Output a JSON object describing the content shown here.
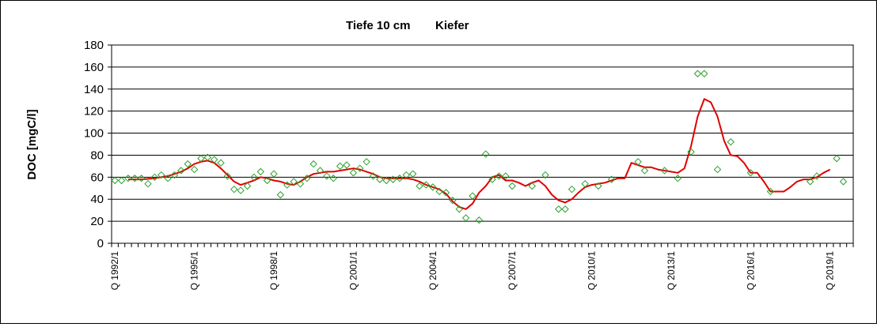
{
  "chart_data": {
    "type": "scatter",
    "title_left": "Tiefe  10 cm",
    "title_right": "Kiefer",
    "ylabel": "DOC [mgC/l]",
    "xlabel": "",
    "ylim": [
      0,
      180
    ],
    "yticks": [
      0,
      20,
      40,
      60,
      80,
      100,
      120,
      140,
      160,
      180
    ],
    "grid": "horizontal",
    "x_unit": "quarter",
    "x_start": "Q 1992/1",
    "x_end": "Q 2019/4",
    "xtick_labels": [
      "Q 1992/1",
      "Q 1995/1",
      "Q 1998/1",
      "Q 2001/1",
      "Q 2004/1",
      "Q 2007/1",
      "Q 2010/1",
      "Q 2013/1",
      "Q 2016/1",
      "Q 2019/1"
    ],
    "series": [
      {
        "kind": "markers",
        "marker": "diamond",
        "color": "#2ca02c",
        "points": [
          [
            "Q 1992/1",
            57
          ],
          [
            "Q 1992/2",
            57
          ],
          [
            "Q 1992/3",
            59
          ],
          [
            "Q 1992/4",
            59
          ],
          [
            "Q 1993/1",
            59
          ],
          [
            "Q 1993/2",
            54
          ],
          [
            "Q 1993/3",
            60
          ],
          [
            "Q 1993/4",
            62
          ],
          [
            "Q 1994/1",
            59
          ],
          [
            "Q 1994/2",
            62
          ],
          [
            "Q 1994/3",
            66
          ],
          [
            "Q 1994/4",
            72
          ],
          [
            "Q 1995/1",
            67
          ],
          [
            "Q 1995/2",
            77
          ],
          [
            "Q 1995/3",
            78
          ],
          [
            "Q 1995/4",
            76
          ],
          [
            "Q 1996/1",
            73
          ],
          [
            "Q 1996/2",
            61
          ],
          [
            "Q 1996/3",
            49
          ],
          [
            "Q 1996/4",
            48
          ],
          [
            "Q 1997/1",
            52
          ],
          [
            "Q 1997/2",
            60
          ],
          [
            "Q 1997/3",
            65
          ],
          [
            "Q 1997/4",
            57
          ],
          [
            "Q 1998/1",
            63
          ],
          [
            "Q 1998/2",
            44
          ],
          [
            "Q 1998/3",
            53
          ],
          [
            "Q 1998/4",
            56
          ],
          [
            "Q 1999/1",
            54
          ],
          [
            "Q 1999/2",
            59
          ],
          [
            "Q 1999/3",
            72
          ],
          [
            "Q 1999/4",
            66
          ],
          [
            "Q 2000/1",
            61
          ],
          [
            "Q 2000/2",
            59
          ],
          [
            "Q 2000/3",
            70
          ],
          [
            "Q 2000/4",
            71
          ],
          [
            "Q 2001/1",
            64
          ],
          [
            "Q 2001/2",
            68
          ],
          [
            "Q 2001/3",
            74
          ],
          [
            "Q 2001/4",
            61
          ],
          [
            "Q 2002/1",
            58
          ],
          [
            "Q 2002/2",
            57
          ],
          [
            "Q 2002/3",
            58
          ],
          [
            "Q 2002/4",
            59
          ],
          [
            "Q 2003/1",
            62
          ],
          [
            "Q 2003/2",
            63
          ],
          [
            "Q 2003/3",
            52
          ],
          [
            "Q 2003/4",
            53
          ],
          [
            "Q 2004/1",
            51
          ],
          [
            "Q 2004/2",
            47
          ],
          [
            "Q 2004/3",
            46
          ],
          [
            "Q 2004/4",
            39
          ],
          [
            "Q 2005/1",
            31
          ],
          [
            "Q 2005/2",
            23
          ],
          [
            "Q 2005/3",
            43
          ],
          [
            "Q 2005/4",
            21
          ],
          [
            "Q 2006/1",
            81
          ],
          [
            "Q 2006/2",
            58
          ],
          [
            "Q 2006/3",
            61
          ],
          [
            "Q 2006/4",
            61
          ],
          [
            "Q 2007/1",
            52
          ],
          [
            "Q 2007/4",
            52
          ],
          [
            "Q 2008/2",
            62
          ],
          [
            "Q 2008/4",
            31
          ],
          [
            "Q 2009/1",
            31
          ],
          [
            "Q 2009/2",
            49
          ],
          [
            "Q 2009/4",
            54
          ],
          [
            "Q 2010/2",
            52
          ],
          [
            "Q 2010/4",
            58
          ],
          [
            "Q 2011/4",
            74
          ],
          [
            "Q 2012/1",
            66
          ],
          [
            "Q 2012/4",
            66
          ],
          [
            "Q 2013/2",
            59
          ],
          [
            "Q 2013/4",
            83
          ],
          [
            "Q 2014/1",
            154
          ],
          [
            "Q 2014/2",
            154
          ],
          [
            "Q 2014/4",
            67
          ],
          [
            "Q 2015/2",
            92
          ],
          [
            "Q 2016/1",
            64
          ],
          [
            "Q 2016/4",
            47
          ],
          [
            "Q 2018/2",
            56
          ],
          [
            "Q 2018/3",
            61
          ],
          [
            "Q 2019/2",
            77
          ],
          [
            "Q 2019/3",
            56
          ]
        ]
      },
      {
        "kind": "line",
        "color": "#e00000",
        "points": [
          [
            "Q 1992/3",
            58
          ],
          [
            "Q 1993/1",
            58
          ],
          [
            "Q 1993/3",
            59
          ],
          [
            "Q 1994/1",
            61
          ],
          [
            "Q 1994/2",
            63
          ],
          [
            "Q 1994/3",
            65
          ],
          [
            "Q 1994/4",
            68
          ],
          [
            "Q 1995/1",
            72
          ],
          [
            "Q 1995/2",
            74
          ],
          [
            "Q 1995/3",
            75
          ],
          [
            "Q 1995/4",
            73
          ],
          [
            "Q 1996/1",
            68
          ],
          [
            "Q 1996/2",
            62
          ],
          [
            "Q 1996/3",
            56
          ],
          [
            "Q 1996/4",
            53
          ],
          [
            "Q 1997/1",
            55
          ],
          [
            "Q 1997/2",
            57
          ],
          [
            "Q 1997/3",
            60
          ],
          [
            "Q 1997/4",
            59
          ],
          [
            "Q 1998/1",
            57
          ],
          [
            "Q 1998/2",
            56
          ],
          [
            "Q 1998/3",
            54
          ],
          [
            "Q 1998/4",
            53
          ],
          [
            "Q 1999/1",
            56
          ],
          [
            "Q 1999/2",
            60
          ],
          [
            "Q 1999/3",
            63
          ],
          [
            "Q 1999/4",
            64
          ],
          [
            "Q 2000/1",
            65
          ],
          [
            "Q 2000/2",
            65
          ],
          [
            "Q 2000/3",
            66
          ],
          [
            "Q 2000/4",
            67
          ],
          [
            "Q 2001/1",
            68
          ],
          [
            "Q 2001/2",
            67
          ],
          [
            "Q 2001/3",
            65
          ],
          [
            "Q 2001/4",
            63
          ],
          [
            "Q 2002/1",
            60
          ],
          [
            "Q 2002/2",
            59
          ],
          [
            "Q 2002/3",
            59
          ],
          [
            "Q 2002/4",
            59
          ],
          [
            "Q 2003/1",
            59
          ],
          [
            "Q 2003/2",
            58
          ],
          [
            "Q 2003/3",
            56
          ],
          [
            "Q 2003/4",
            53
          ],
          [
            "Q 2004/1",
            51
          ],
          [
            "Q 2004/2",
            49
          ],
          [
            "Q 2004/3",
            45
          ],
          [
            "Q 2004/4",
            38
          ],
          [
            "Q 2005/1",
            33
          ],
          [
            "Q 2005/2",
            31
          ],
          [
            "Q 2005/3",
            36
          ],
          [
            "Q 2005/4",
            46
          ],
          [
            "Q 2006/1",
            52
          ],
          [
            "Q 2006/2",
            60
          ],
          [
            "Q 2006/3",
            62
          ],
          [
            "Q 2006/4",
            57
          ],
          [
            "Q 2007/1",
            57
          ],
          [
            "Q 2007/2",
            55
          ],
          [
            "Q 2007/3",
            52
          ],
          [
            "Q 2007/4",
            55
          ],
          [
            "Q 2008/1",
            57
          ],
          [
            "Q 2008/2",
            52
          ],
          [
            "Q 2008/3",
            44
          ],
          [
            "Q 2008/4",
            39
          ],
          [
            "Q 2009/1",
            37
          ],
          [
            "Q 2009/2",
            40
          ],
          [
            "Q 2009/3",
            46
          ],
          [
            "Q 2009/4",
            51
          ],
          [
            "Q 2010/1",
            53
          ],
          [
            "Q 2010/2",
            54
          ],
          [
            "Q 2010/3",
            55
          ],
          [
            "Q 2010/4",
            57
          ],
          [
            "Q 2011/1",
            59
          ],
          [
            "Q 2011/2",
            59
          ],
          [
            "Q 2011/3",
            73
          ],
          [
            "Q 2011/4",
            71
          ],
          [
            "Q 2012/1",
            69
          ],
          [
            "Q 2012/2",
            69
          ],
          [
            "Q 2012/3",
            67
          ],
          [
            "Q 2012/4",
            66
          ],
          [
            "Q 2013/1",
            65
          ],
          [
            "Q 2013/2",
            64
          ],
          [
            "Q 2013/3",
            68
          ],
          [
            "Q 2013/4",
            88
          ],
          [
            "Q 2014/1",
            115
          ],
          [
            "Q 2014/2",
            131
          ],
          [
            "Q 2014/3",
            128
          ],
          [
            "Q 2014/4",
            115
          ],
          [
            "Q 2015/1",
            93
          ],
          [
            "Q 2015/2",
            80
          ],
          [
            "Q 2015/3",
            79
          ],
          [
            "Q 2015/4",
            73
          ],
          [
            "Q 2016/1",
            64
          ],
          [
            "Q 2016/2",
            64
          ],
          [
            "Q 2016/3",
            56
          ],
          [
            "Q 2016/4",
            47
          ],
          [
            "Q 2017/1",
            47
          ],
          [
            "Q 2017/2",
            47
          ],
          [
            "Q 2017/3",
            51
          ],
          [
            "Q 2017/4",
            56
          ],
          [
            "Q 2018/1",
            58
          ],
          [
            "Q 2018/2",
            58
          ],
          [
            "Q 2018/3",
            60
          ],
          [
            "Q 2018/4",
            64
          ],
          [
            "Q 2019/1",
            67
          ]
        ]
      }
    ]
  }
}
